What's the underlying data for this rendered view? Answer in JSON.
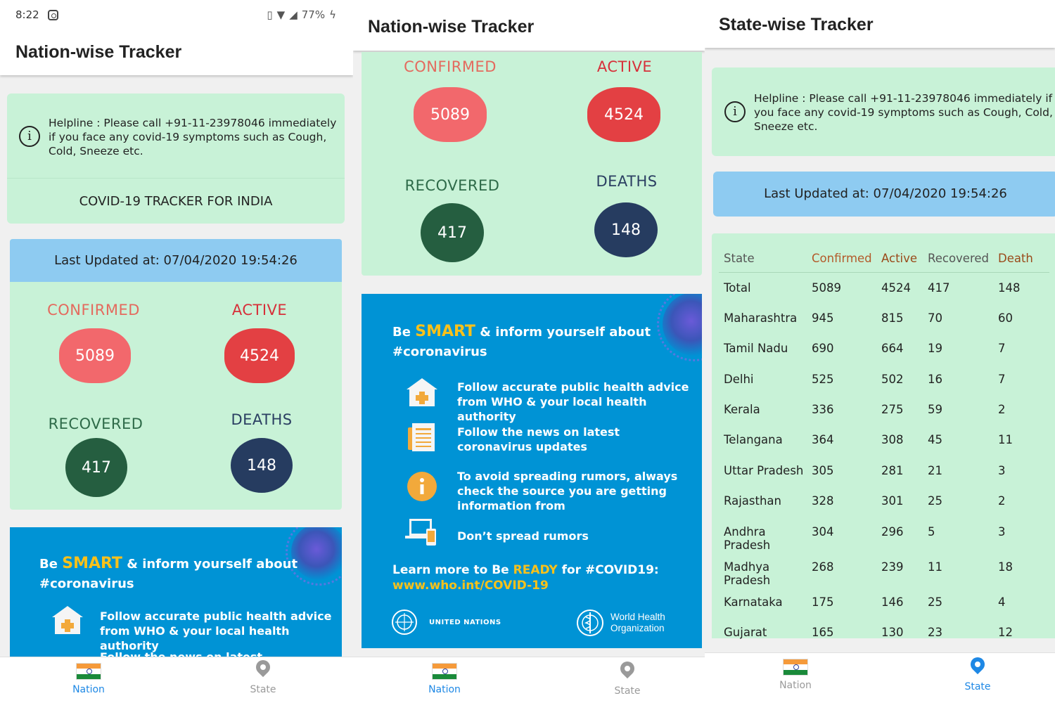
{
  "status_bar": {
    "time": "8:22",
    "battery": "77%"
  },
  "screens": {
    "nation1": {
      "title": "Nation-wise Tracker",
      "helpline": "Helpline : Please call +91-11-23978046 immediately if you face any covid-19 symptoms such as Cough, Cold, Sneeze etc.",
      "tracker_heading": "COVID-19 TRACKER FOR INDIA",
      "last_updated": "Last Updated at: 07/04/2020 19:54:26"
    },
    "nation2": {
      "title": "Nation-wise Tracker"
    },
    "state": {
      "title": "State-wise Tracker",
      "helpline": "Helpline : Please call +91-11-23978046 immediately if you face any covid-19 symptoms such as Cough, Cold, Sneeze etc.",
      "last_updated": "Last Updated at: 07/04/2020 19:54:26"
    }
  },
  "stats": {
    "confirmed_label": "CONFIRMED",
    "confirmed": "5089",
    "active_label": "ACTIVE",
    "active": "4524",
    "recovered_label": "RECOVERED",
    "recovered": "417",
    "deaths_label": "DEATHS",
    "deaths": "148"
  },
  "who": {
    "be": "Be",
    "smart": "SMART",
    "inform": "& inform yourself about",
    "hashtag": "#coronavirus",
    "tips": [
      "Follow accurate public health advice from WHO & your local health authority",
      "Follow the news on latest coronavirus updates",
      "To avoid spreading rumors, always check the source you are getting information from",
      "Don’t spread rumors"
    ],
    "tip_partial": "Follow the news on latest",
    "learn_prefix": "Learn more to Be",
    "ready": "READY",
    "learn_suffix": "for #COVID19:",
    "url": "www.who.int/COVID-19",
    "un": "UNITED NATIONS",
    "who_name_1": "World Health",
    "who_name_2": "Organization"
  },
  "nav": {
    "nation": "Nation",
    "state": "State"
  },
  "table": {
    "headers": [
      "State",
      "Confirmed",
      "Active",
      "Recovered",
      "Death"
    ],
    "rows": [
      [
        "Total",
        "5089",
        "4524",
        "417",
        "148"
      ],
      [
        "Maharashtra",
        "945",
        "815",
        "70",
        "60"
      ],
      [
        "Tamil Nadu",
        "690",
        "664",
        "19",
        "7"
      ],
      [
        "Delhi",
        "525",
        "502",
        "16",
        "7"
      ],
      [
        "Kerala",
        "336",
        "275",
        "59",
        "2"
      ],
      [
        "Telangana",
        "364",
        "308",
        "45",
        "11"
      ],
      [
        "Uttar Pradesh",
        "305",
        "281",
        "21",
        "3"
      ],
      [
        "Rajasthan",
        "328",
        "301",
        "25",
        "2"
      ],
      [
        "Andhra Pradesh",
        "304",
        "296",
        "5",
        "3"
      ],
      [
        "Madhya Pradesh",
        "268",
        "239",
        "11",
        "18"
      ],
      [
        "Karnataka",
        "175",
        "146",
        "25",
        "4"
      ],
      [
        "Gujarat",
        "165",
        "130",
        "23",
        "12"
      ]
    ]
  },
  "colors": {
    "card_green": "#c8f2d7",
    "header_blue": "#8ecbf1",
    "who_blue": "#0093d5",
    "confirmed": "#f2686c",
    "active": "#e34043",
    "recovered": "#255e40",
    "deaths": "#263c60",
    "nav_active": "#1e88e5"
  },
  "icons": [
    "instagram-icon",
    "vibrate-icon",
    "wifi-icon",
    "signal-icon",
    "battery-icon",
    "info-icon",
    "india-flag-icon",
    "location-pin-icon",
    "hospital-icon",
    "news-icon",
    "info-circle-icon",
    "devices-icon",
    "un-emblem-icon",
    "who-emblem-icon",
    "virus-icon"
  ]
}
